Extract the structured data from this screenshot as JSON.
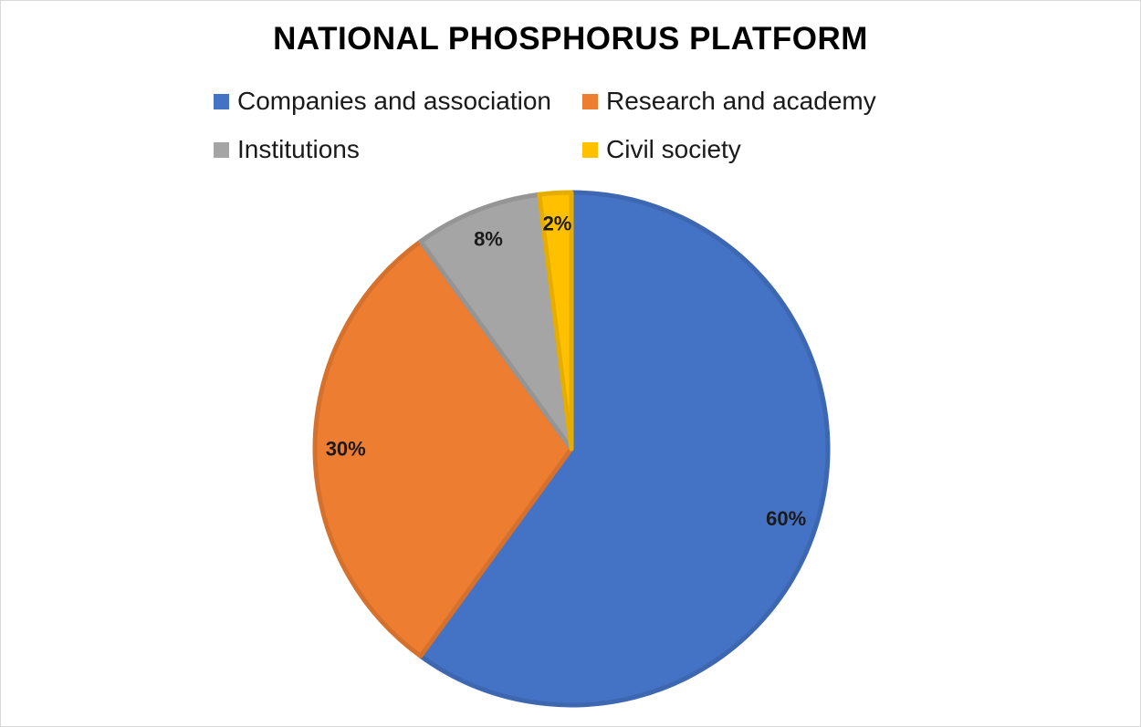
{
  "chart_data": {
    "type": "pie",
    "title": "NATIONAL PHOSPHORUS PLATFORM",
    "categories": [
      "Companies and association",
      "Research and academy",
      "Institutions",
      "Civil society"
    ],
    "values": [
      60,
      30,
      8,
      2
    ],
    "labels": [
      "60%",
      "30%",
      "8%",
      "2%"
    ],
    "colors": [
      "#4472C4",
      "#ED7D31",
      "#A5A5A5",
      "#FFC000"
    ],
    "legend_position": "top"
  }
}
